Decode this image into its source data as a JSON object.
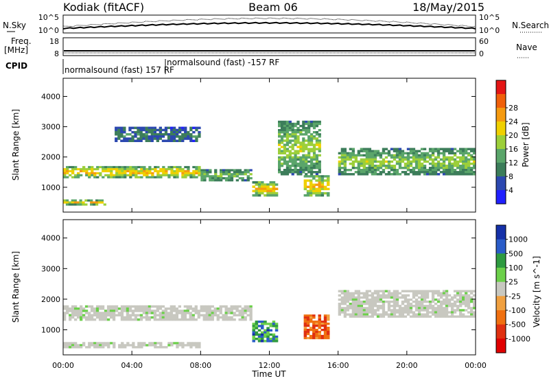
{
  "header": {
    "station": "Kodiak (fitACF)",
    "beam": "Beam 06",
    "date": "18/May/2015"
  },
  "top_panels": {
    "nsky_label": "N.Sky",
    "nsky_tick_high": "10^5",
    "nsky_tick_low": "10^0",
    "nsearch_label": "N.Search",
    "freq_label": "Freq.",
    "freq_unit": "[MHz]",
    "freq_tick_high": "18",
    "freq_tick_low": "8",
    "nave_label": "Nave",
    "nave_tick_high": "60",
    "nave_tick_low": "0",
    "cpid_label": "CPID",
    "cpid_entries": [
      "normalsound (fast) 157 RF",
      "normalsound (fast) -157 RF"
    ]
  },
  "colors": {
    "power": [
      "#2020ff",
      "#2c48b0",
      "#3c7d5a",
      "#5aa56a",
      "#9ccf3a",
      "#f0d000",
      "#f59a10",
      "#f0600a",
      "#e41515"
    ],
    "velocity": [
      "#1530a8",
      "#2a5cc8",
      "#2e9a40",
      "#6cd04a",
      "#c8c8c0",
      "#f0a040",
      "#f07010",
      "#e03010",
      "#e00000"
    ]
  },
  "chart_data": [
    {
      "type": "heatmap",
      "panel": "power",
      "xlabel": "Time UT",
      "ylabel": "Slant Range [km]",
      "x_ticks": [
        "00:00",
        "04:00",
        "08:00",
        "12:00",
        "16:00",
        "20:00",
        "00:00"
      ],
      "x_range_hours": [
        0,
        24
      ],
      "y_ticks": [
        "1000",
        "2000",
        "3000",
        "4000"
      ],
      "ylim": [
        180,
        4600
      ],
      "colorbar": {
        "label": "Power [dB]",
        "ticks": [
          "4",
          "8",
          "12",
          "16",
          "20",
          "24",
          "28"
        ],
        "range": [
          0,
          32
        ]
      },
      "features": [
        {
          "hours": [
            0,
            2.5
          ],
          "range_km": [
            400,
            600
          ],
          "level": "high"
        },
        {
          "hours": [
            0,
            8
          ],
          "range_km": [
            1300,
            1700
          ],
          "level": "high"
        },
        {
          "hours": [
            8,
            11
          ],
          "range_km": [
            1200,
            1600
          ],
          "level": "medium"
        },
        {
          "hours": [
            11,
            12.5
          ],
          "range_km": [
            700,
            1200
          ],
          "level": "high"
        },
        {
          "hours": [
            12.5,
            15
          ],
          "range_km": [
            1400,
            3200
          ],
          "level": "medium"
        },
        {
          "hours": [
            14,
            15.5
          ],
          "range_km": [
            700,
            1400
          ],
          "level": "high"
        },
        {
          "hours": [
            16,
            24
          ],
          "range_km": [
            1400,
            2300
          ],
          "level": "medium"
        },
        {
          "hours": [
            3,
            8
          ],
          "range_km": [
            2500,
            3000
          ],
          "level": "low"
        }
      ]
    },
    {
      "type": "heatmap",
      "panel": "velocity",
      "xlabel": "Time UT",
      "ylabel": "Slant Range [km]",
      "x_ticks": [
        "00:00",
        "04:00",
        "08:00",
        "12:00",
        "16:00",
        "20:00",
        "00:00"
      ],
      "x_range_hours": [
        0,
        24
      ],
      "y_ticks": [
        "1000",
        "2000",
        "3000",
        "4000"
      ],
      "ylim": [
        180,
        4600
      ],
      "colorbar": {
        "label": "Velocity [m s^-1]",
        "ticks": [
          "1000",
          "500",
          "100",
          "25",
          "-25",
          "-100",
          "-500",
          "-1000"
        ]
      },
      "features": [
        {
          "hours": [
            0,
            11
          ],
          "range_km": [
            1300,
            1800
          ],
          "level": "near-zero"
        },
        {
          "hours": [
            11,
            12.5
          ],
          "range_km": [
            600,
            1300
          ],
          "level": "positive"
        },
        {
          "hours": [
            14,
            15.5
          ],
          "range_km": [
            700,
            1500
          ],
          "level": "negative"
        },
        {
          "hours": [
            16,
            24
          ],
          "range_km": [
            1400,
            2300
          ],
          "level": "near-zero"
        },
        {
          "hours": [
            0,
            8
          ],
          "range_km": [
            400,
            600
          ],
          "level": "near-zero"
        }
      ]
    }
  ]
}
